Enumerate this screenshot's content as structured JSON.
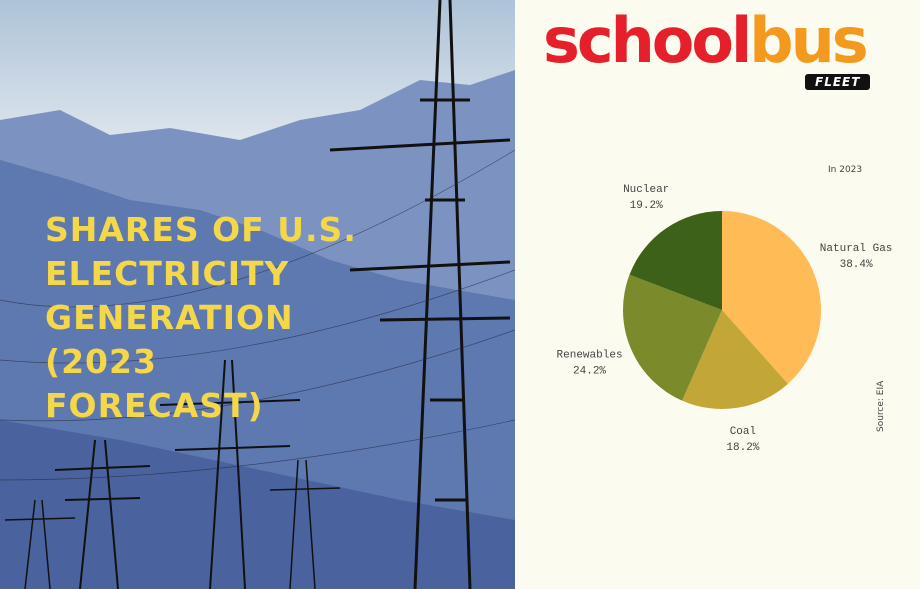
{
  "logo": {
    "first": "school",
    "second": "bus",
    "sub": "FLEET"
  },
  "chart_data": {
    "type": "pie",
    "title": "SHARES OF U.S. ELECTRICITY GENERATION (2023 FORECAST)",
    "subtitle": "In 2023",
    "source": "Source: EIA",
    "categories": [
      "Natural Gas",
      "Coal",
      "Renewables",
      "Nuclear"
    ],
    "values": [
      38.4,
      18.2,
      24.2,
      19.2
    ],
    "value_labels": [
      "38.4%",
      "18.2%",
      "24.2%",
      "19.2%"
    ],
    "colors": [
      "#ffbb55",
      "#c2a637",
      "#7b8a2b",
      "#3e6119"
    ]
  }
}
